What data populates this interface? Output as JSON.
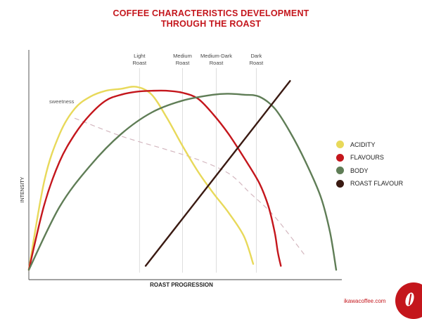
{
  "header": {
    "title_line1": "COFFEE CHARACTERISTICS DEVELOPMENT",
    "title_line2": "THROUGH THE ROAST"
  },
  "chart_data": {
    "type": "line",
    "xlabel": "ROAST PROGRESSION",
    "ylabel": "INTENSITY",
    "xlim": [
      0,
      100
    ],
    "ylim": [
      0,
      100
    ],
    "grid": false,
    "legend_position": "right",
    "stage_markers": [
      {
        "label_lines": [
          "Light",
          "Roast"
        ],
        "x": 36
      },
      {
        "label_lines": [
          "Medium",
          "Roast"
        ],
        "x": 50
      },
      {
        "label_lines": [
          "Medium-Dark",
          "Roast"
        ],
        "x": 61
      },
      {
        "label_lines": [
          "Dark",
          "Roast"
        ],
        "x": 74
      }
    ],
    "annotation": {
      "text": "sweetness",
      "x": 15,
      "y": 87
    },
    "series": [
      {
        "name": "ACIDITY",
        "color": "#e8d95a",
        "style": "solid",
        "points": [
          [
            0,
            5
          ],
          [
            5,
            50
          ],
          [
            10,
            74
          ],
          [
            15,
            87
          ],
          [
            20,
            93
          ],
          [
            25,
            96
          ],
          [
            30,
            97
          ],
          [
            35,
            98
          ],
          [
            40,
            94
          ],
          [
            45,
            82
          ],
          [
            50,
            68
          ],
          [
            55,
            55
          ],
          [
            60,
            44
          ],
          [
            65,
            34
          ],
          [
            70,
            22
          ],
          [
            73,
            8
          ]
        ]
      },
      {
        "name": "FLAVOURS",
        "color": "#c4161c",
        "style": "solid",
        "points": [
          [
            0,
            5
          ],
          [
            5,
            38
          ],
          [
            10,
            60
          ],
          [
            15,
            74
          ],
          [
            20,
            84
          ],
          [
            25,
            91
          ],
          [
            30,
            94
          ],
          [
            35,
            95.5
          ],
          [
            40,
            96
          ],
          [
            45,
            96
          ],
          [
            50,
            95
          ],
          [
            55,
            92
          ],
          [
            60,
            84
          ],
          [
            65,
            74
          ],
          [
            70,
            62
          ],
          [
            75,
            49
          ],
          [
            78,
            37
          ],
          [
            80,
            24
          ],
          [
            81,
            14
          ],
          [
            82,
            7
          ]
        ]
      },
      {
        "name": "BODY",
        "color": "#5f7d56",
        "style": "solid",
        "points": [
          [
            0,
            5
          ],
          [
            10,
            37
          ],
          [
            20,
            58
          ],
          [
            30,
            74
          ],
          [
            40,
            85
          ],
          [
            50,
            91
          ],
          [
            60,
            94
          ],
          [
            65,
            94.5
          ],
          [
            70,
            94
          ],
          [
            75,
            93
          ],
          [
            80,
            87
          ],
          [
            85,
            75
          ],
          [
            90,
            60
          ],
          [
            95,
            42
          ],
          [
            98,
            24
          ],
          [
            100,
            5
          ]
        ]
      },
      {
        "name": "ROAST FLAVOUR",
        "color": "#3a1a12",
        "style": "solid",
        "points": [
          [
            38,
            7
          ],
          [
            85,
            101
          ]
        ]
      },
      {
        "name": "sweetness",
        "color": "#d4b8c0",
        "style": "dashed",
        "points": [
          [
            15,
            82
          ],
          [
            30,
            73
          ],
          [
            45,
            66
          ],
          [
            55,
            61
          ],
          [
            65,
            54
          ],
          [
            72,
            44
          ],
          [
            80,
            32
          ],
          [
            90,
            12
          ]
        ]
      }
    ]
  },
  "footer": {
    "site": "ikawacoffee.com",
    "logo_icon": "coffee-bean-icon"
  }
}
